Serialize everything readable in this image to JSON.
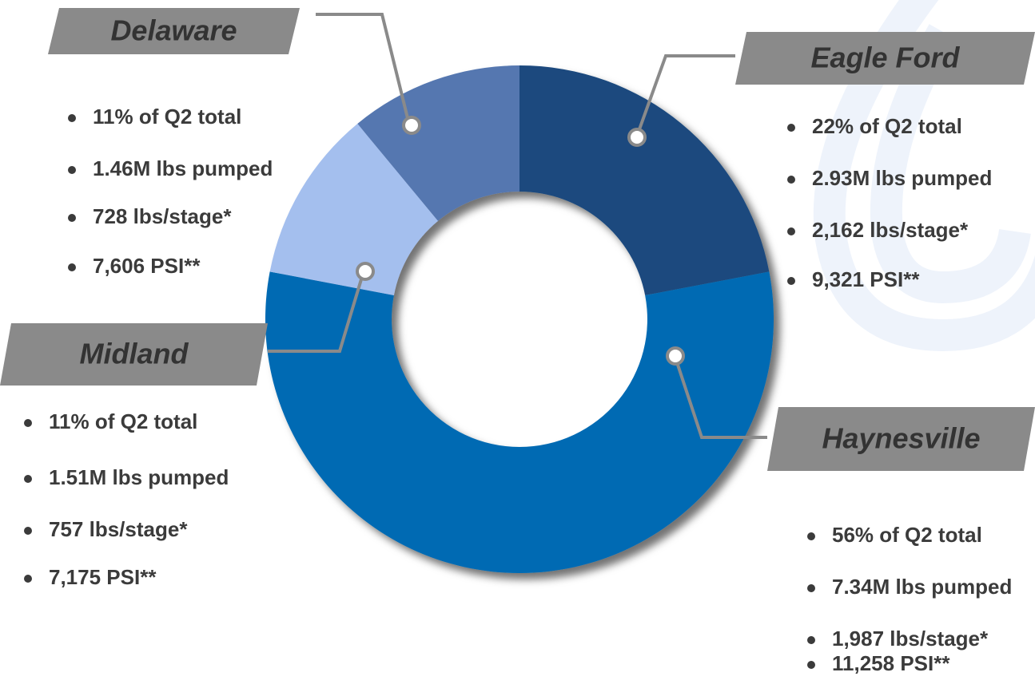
{
  "chart_data": {
    "type": "pie",
    "donut": true,
    "categories": [
      "Eagle Ford",
      "Haynesville",
      "Midland",
      "Delaware"
    ],
    "values": [
      22,
      56,
      11,
      11
    ],
    "value_labels": [
      "22% of Q2 total",
      "56% of Q2 total",
      "11% of Q2 total",
      "11% of Q2 total"
    ],
    "colors": [
      "#1a4a7e",
      "#006bb3",
      "#a4bfee",
      "#5577b0"
    ],
    "details": [
      [
        "2.93M lbs pumped",
        "2,162 lbs/stage*",
        "9,321 PSI**"
      ],
      [
        "7.34M lbs pumped",
        "1,987 lbs/stage*",
        "11,258 PSI**"
      ],
      [
        "1.51M lbs pumped",
        "757 lbs/stage*",
        "7,175 PSI**"
      ],
      [
        "1.46M lbs pumped",
        "728 lbs/stage*",
        "7,606 PSI**"
      ]
    ]
  }
}
